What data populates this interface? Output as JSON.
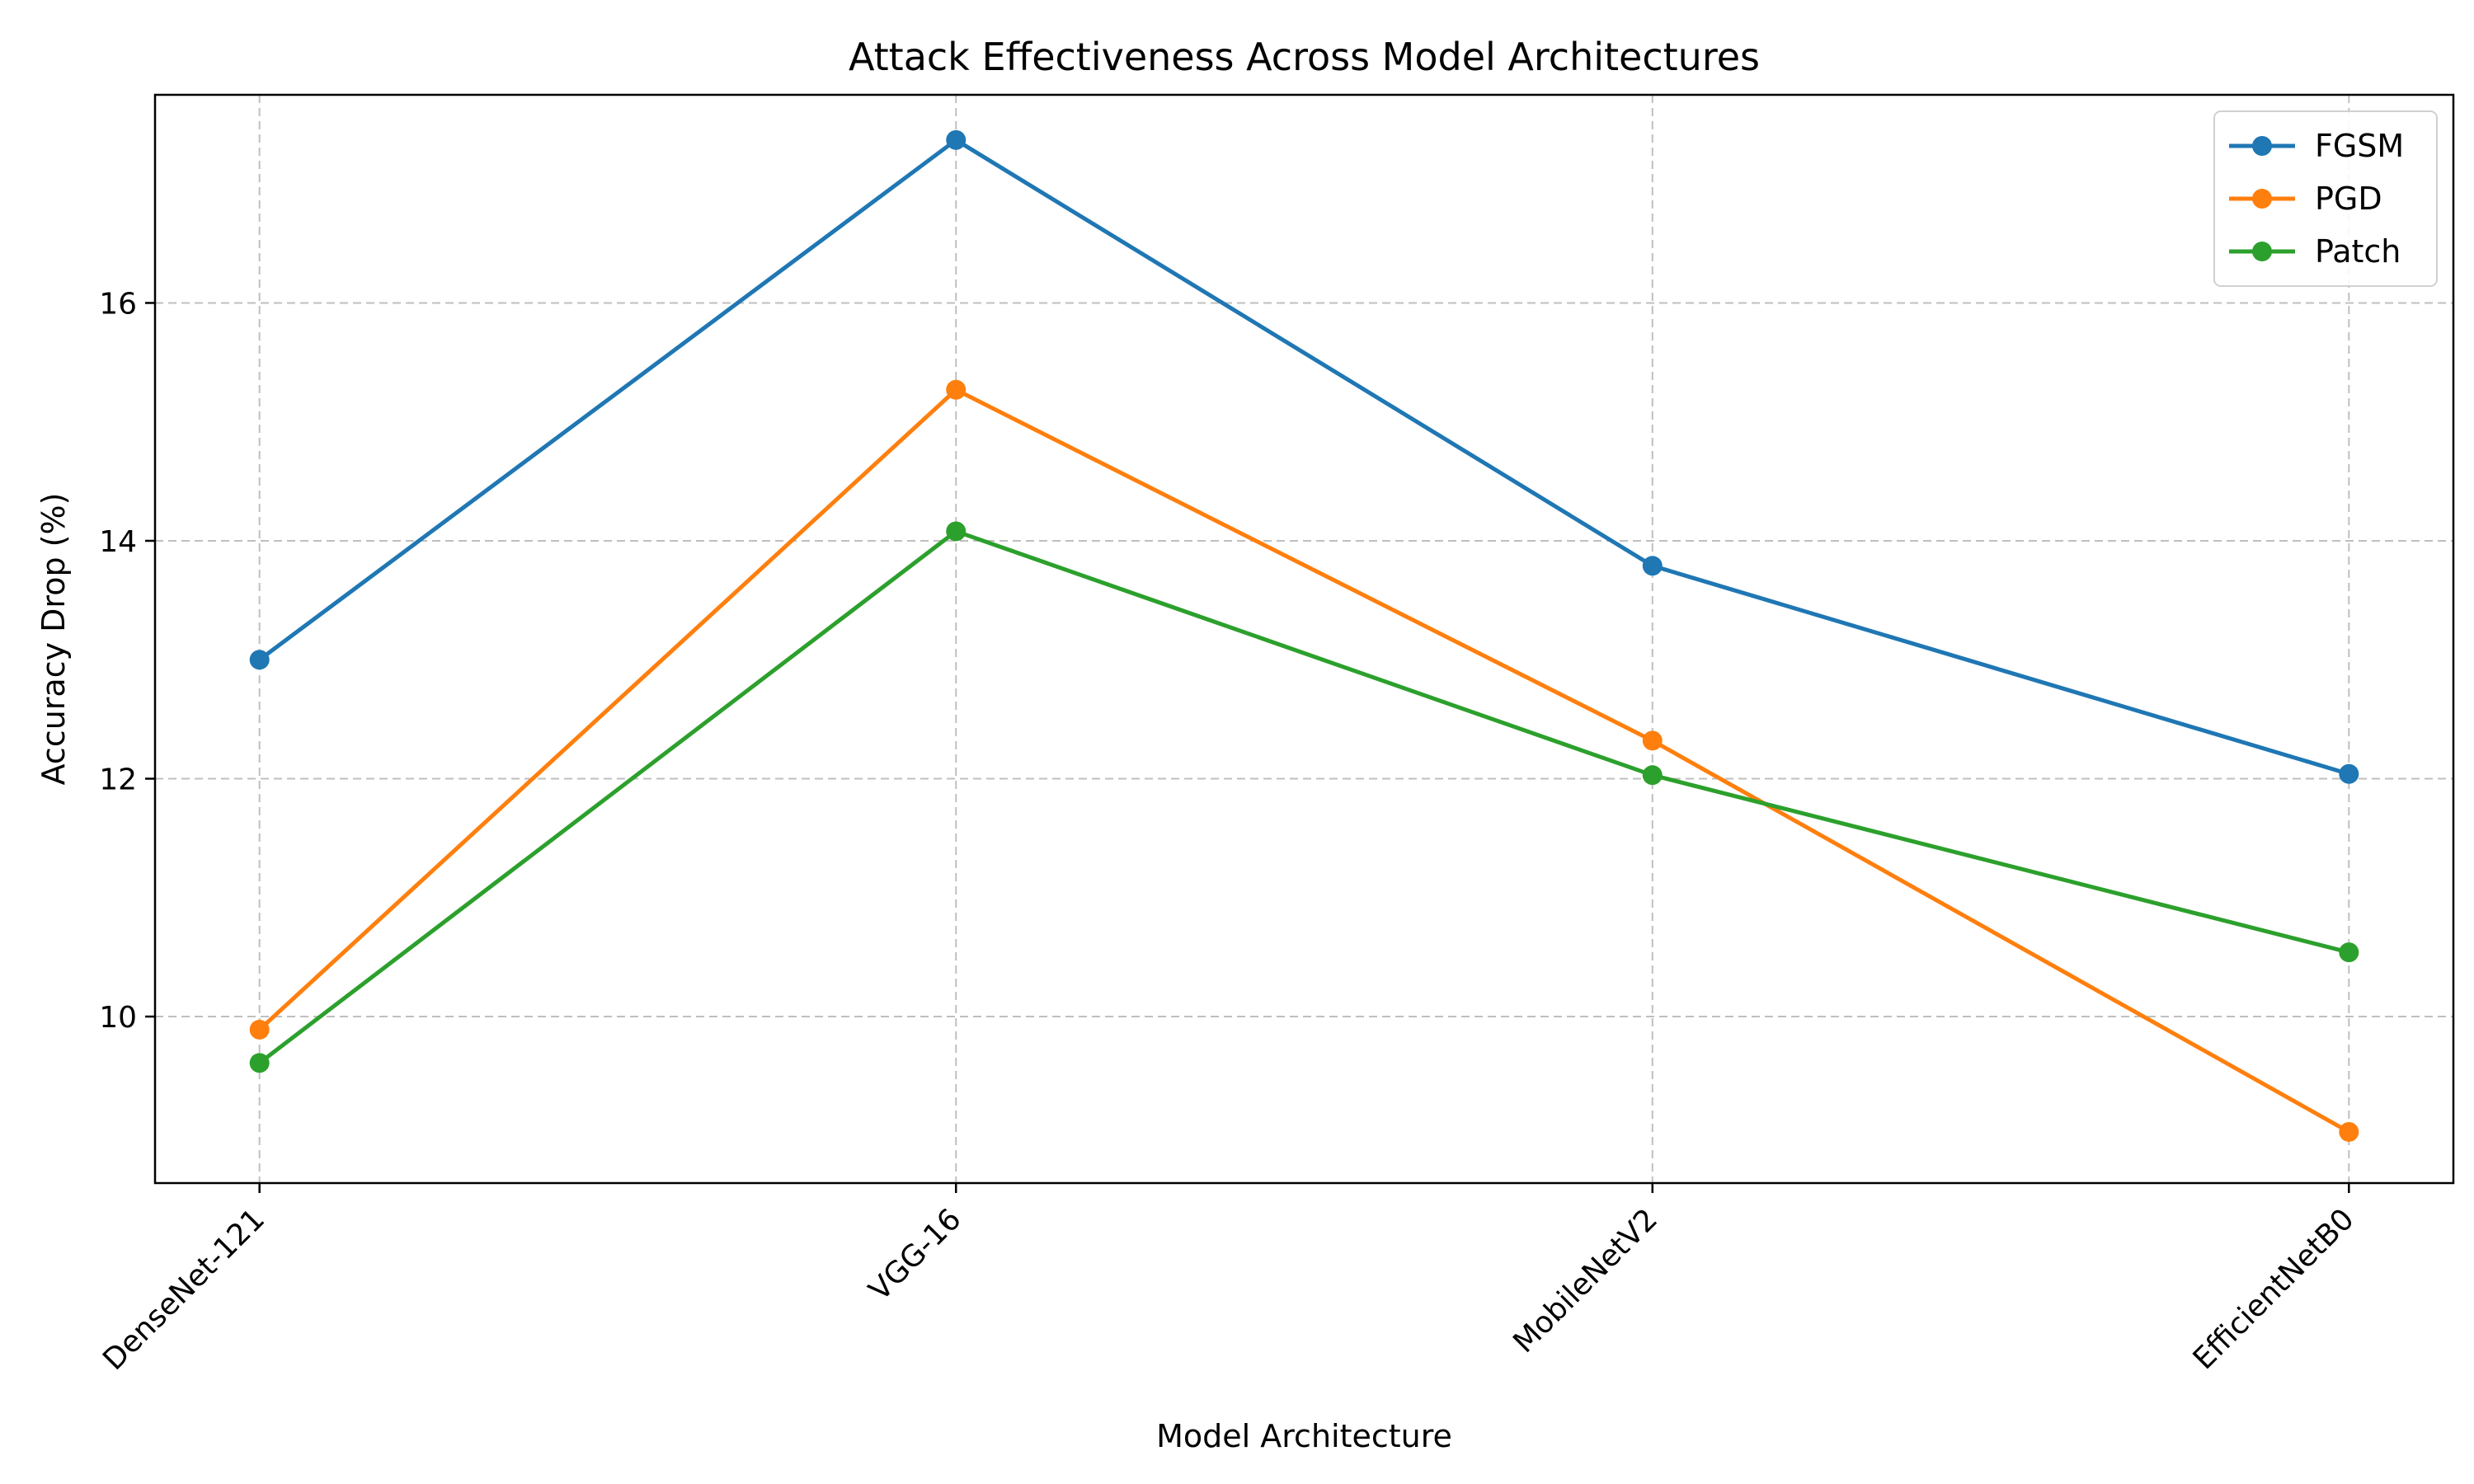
{
  "chart_data": {
    "type": "line",
    "title": "Attack Effectiveness Across Model Architectures",
    "xlabel": "Model Architecture",
    "ylabel": "Accuracy Drop (%)",
    "categories": [
      "DenseNet-121",
      "VGG-16",
      "MobileNetV2",
      "EfficientNetB0"
    ],
    "series": [
      {
        "name": "FGSM",
        "color": "#1f77b4",
        "values": [
          13.0,
          17.37,
          13.79,
          12.04
        ]
      },
      {
        "name": "PGD",
        "color": "#ff7f0e",
        "values": [
          9.89,
          15.27,
          12.32,
          9.03
        ]
      },
      {
        "name": "Patch",
        "color": "#2ca02c",
        "values": [
          9.61,
          14.08,
          12.03,
          10.54
        ]
      }
    ],
    "ylim": [
      8.6,
      17.75
    ],
    "yticks": [
      10,
      12,
      14,
      16
    ],
    "grid": true,
    "grid_style": "dashed",
    "legend_position": "top-right",
    "marker": "circle"
  }
}
